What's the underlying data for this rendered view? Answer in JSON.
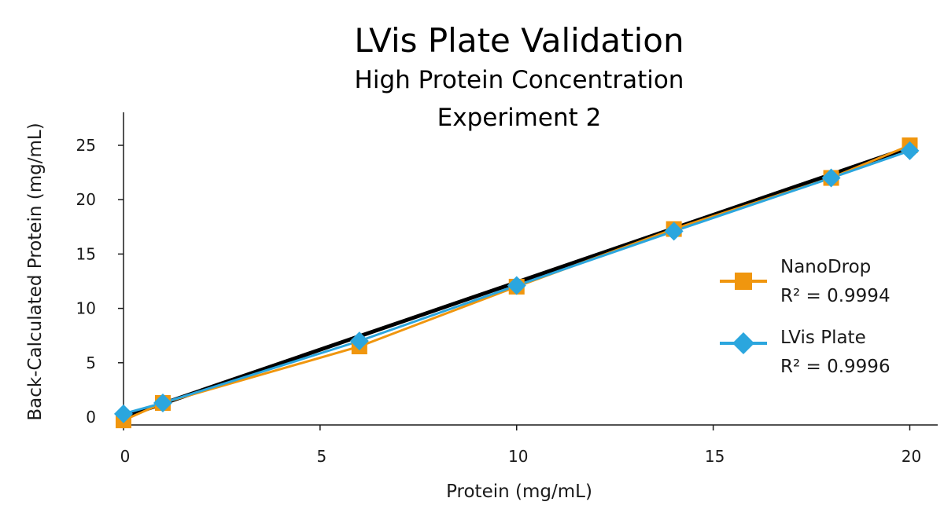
{
  "chart_data": {
    "type": "scatter",
    "title": "LVis Plate Validation",
    "subtitle": [
      "High Protein Concentration",
      "Experiment 2"
    ],
    "xlabel": "Protein (mg/mL)",
    "ylabel": "Back-Calculated Protein (mg/mL)",
    "xlim": [
      0,
      20.6
    ],
    "ylim": [
      0,
      28
    ],
    "x_ticks": [
      0,
      5,
      10,
      15,
      20
    ],
    "y_ticks": [
      0,
      5,
      10,
      15,
      20,
      25
    ],
    "x_tick_labels": [
      "0",
      "5",
      "10",
      "15",
      "20"
    ],
    "y_tick_labels": [
      "0",
      "5",
      "10",
      "15",
      "20",
      "25"
    ],
    "grid": false,
    "legend_position": "right",
    "reference_line": {
      "x": [
        0,
        20
      ],
      "y": [
        0,
        24.8
      ],
      "color": "#000000"
    },
    "series": [
      {
        "name": "NanoDrop",
        "r2": "R² = 0.9994",
        "marker": "square",
        "color": "#F0960E",
        "x": [
          0,
          1,
          6,
          10,
          14,
          18,
          20
        ],
        "y": [
          -0.3,
          1.3,
          6.5,
          12.0,
          17.3,
          22.0,
          25.0
        ]
      },
      {
        "name": "LVis Plate",
        "r2": "R² = 0.9996",
        "marker": "diamond",
        "color": "#2BA6DE",
        "x": [
          0,
          1,
          6,
          10,
          14,
          18,
          20
        ],
        "y": [
          0.3,
          1.3,
          7.0,
          12.1,
          17.1,
          22.0,
          24.5
        ]
      }
    ]
  }
}
